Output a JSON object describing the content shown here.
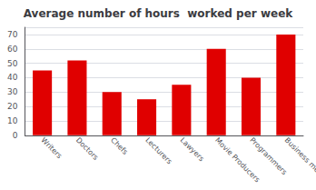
{
  "chart_data": {
    "type": "bar",
    "title": "Average number of hours  worked per week",
    "categories": [
      "Writers",
      "Doctors",
      "Chefs",
      "Lecturers",
      "Lawyers",
      "Movie Producers",
      "Programmers",
      "Business men"
    ],
    "values": [
      45,
      52,
      30,
      25,
      35,
      60,
      40,
      70
    ],
    "color": "#e00000",
    "ylim": [
      0,
      75
    ],
    "yticks": [
      0,
      10,
      20,
      30,
      40,
      50,
      60,
      70
    ],
    "grid": true
  }
}
